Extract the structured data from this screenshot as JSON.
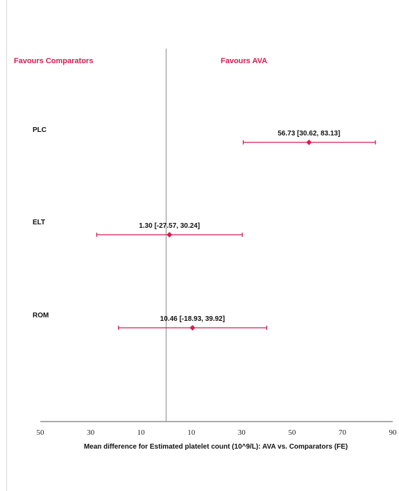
{
  "colors": {
    "accent": "#d81b4f",
    "axis": "#555555",
    "zero_line": "#999999",
    "text": "#111111"
  },
  "favours_left": "Favours Comparators",
  "favours_right": "Favours AVA",
  "chart_data": {
    "type": "forest",
    "title": "",
    "xlabel": "Mean difference for Estimated platelet count (10^9/L): AVA vs. Comparators (FE)",
    "ylabel": "",
    "xlim": [
      -50,
      90
    ],
    "x_ticks": [
      -50,
      -30,
      -10,
      10,
      30,
      50,
      70,
      90
    ],
    "x_tick_labels": [
      "50",
      "30",
      "10",
      "10",
      "30",
      "50",
      "70",
      "90"
    ],
    "reference_line": 0,
    "grid": false,
    "studies": [
      {
        "name": "PLC",
        "estimate": 56.73,
        "ci_low": 30.62,
        "ci_high": 83.13,
        "label": "56.73 [30.62, 83.13]"
      },
      {
        "name": "ELT",
        "estimate": 1.3,
        "ci_low": -27.57,
        "ci_high": 30.24,
        "label": "1.30 [-27.57, 30.24]"
      },
      {
        "name": "ROM",
        "estimate": 10.46,
        "ci_low": -18.93,
        "ci_high": 39.92,
        "label": "10.46 [-18.93, 39.92]"
      }
    ]
  }
}
